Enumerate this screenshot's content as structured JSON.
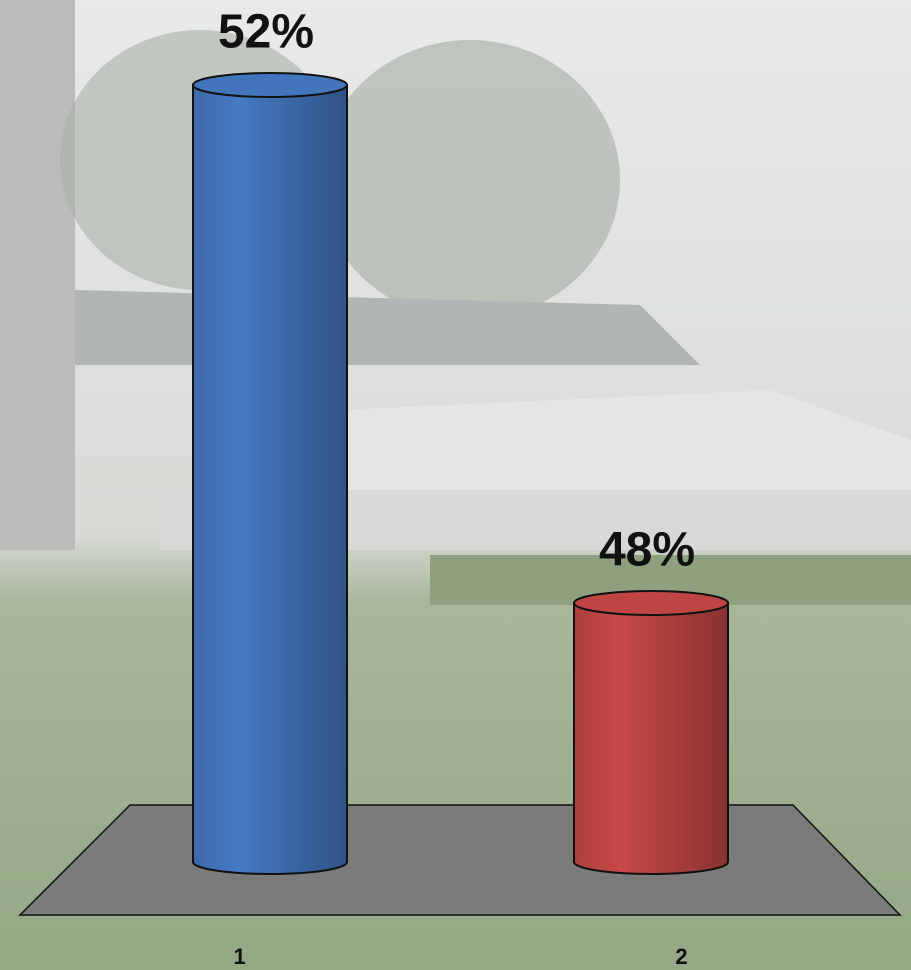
{
  "chart_data": {
    "type": "cylinder-bar",
    "categories": [
      "1",
      "2"
    ],
    "values": [
      52,
      48
    ],
    "value_labels": [
      "52%",
      "48%"
    ],
    "colors": [
      "#3f6fb2",
      "#b54241"
    ],
    "ylim": [
      46,
      52
    ]
  }
}
